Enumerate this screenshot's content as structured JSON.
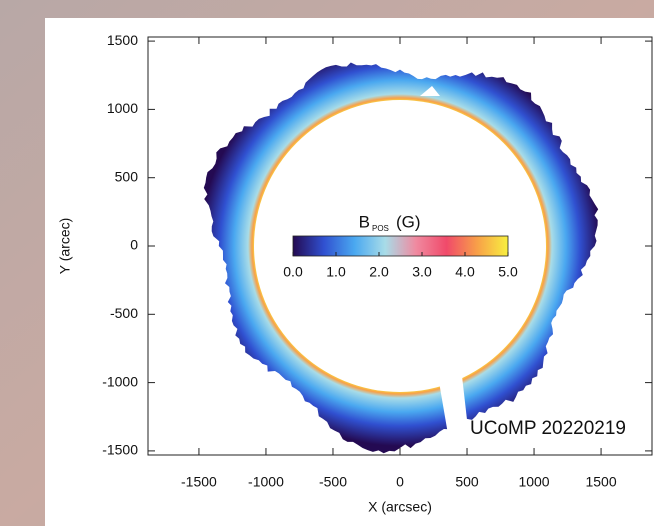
{
  "chart_data": {
    "type": "image",
    "xlabel": "X (arcsec)",
    "ylabel": "Y (arcec)",
    "xlim": [
      -1880,
      1880
    ],
    "ylim": [
      -1530,
      1530
    ],
    "xticks": [
      -1500,
      -1000,
      -500,
      0,
      500,
      1000,
      1500
    ],
    "yticks": [
      -1500,
      -1000,
      -500,
      0,
      500,
      1000,
      1500
    ],
    "annotation": "UCoMP 20220219",
    "colorbar": {
      "title": "B",
      "title_subscript": "POS",
      "title_unit": "(G)",
      "lim": [
        0,
        5
      ],
      "ticks": [
        {
          "value": 0,
          "label": "0.0"
        },
        {
          "value": 1,
          "label": "1.0"
        },
        {
          "value": 2,
          "label": "2.0"
        },
        {
          "value": 3,
          "label": "3.0"
        },
        {
          "value": 4,
          "label": "4.0"
        },
        {
          "value": 5,
          "label": "5.0"
        }
      ],
      "colors": [
        "#240a52",
        "#3050d0",
        "#4aa8f0",
        "#a8dce8",
        "#f08aa0",
        "#f04a6a",
        "#f8a048",
        "#f8f040"
      ]
    }
  }
}
